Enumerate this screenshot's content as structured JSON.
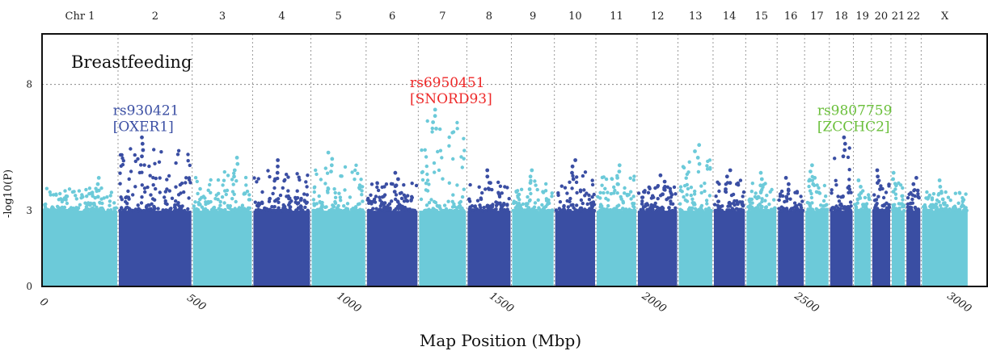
{
  "chart_data": {
    "type": "scatter",
    "title": "Breastfeeding",
    "xlabel": "Map Position (Mbp)",
    "ylabel": "-log10(P)",
    "xlim": [
      0,
      3100
    ],
    "ylim": [
      0,
      10
    ],
    "xticks": [
      "0",
      "500",
      "1000",
      "1500",
      "2000",
      "2500",
      "3000"
    ],
    "yticks": [
      "0",
      "3",
      "8"
    ],
    "grid": "vertical dotted chromosome boundaries; horizontal dotted line at 8",
    "colors": {
      "light": "#6ccad9",
      "dark": "#3a4ea3",
      "red": "#ee2a2a",
      "green": "#6abf3a",
      "blue_text": "#3a4ea3"
    },
    "chromosomes": [
      {
        "label": "Chr 1",
        "start": 0,
        "end": 249,
        "color": "light",
        "peak": 4.3
      },
      {
        "label": "2",
        "start": 249,
        "end": 492,
        "color": "dark",
        "peak": 5.9
      },
      {
        "label": "3",
        "start": 492,
        "end": 690,
        "color": "light",
        "peak": 5.1
      },
      {
        "label": "4",
        "start": 690,
        "end": 881,
        "color": "dark",
        "peak": 5.0
      },
      {
        "label": "5",
        "start": 881,
        "end": 1062,
        "color": "light",
        "peak": 5.3
      },
      {
        "label": "6",
        "start": 1062,
        "end": 1233,
        "color": "dark",
        "peak": 4.5
      },
      {
        "label": "7",
        "start": 1233,
        "end": 1392,
        "color": "light",
        "peak": 7.0
      },
      {
        "label": "8",
        "start": 1392,
        "end": 1538,
        "color": "dark",
        "peak": 4.6
      },
      {
        "label": "9",
        "start": 1538,
        "end": 1679,
        "color": "light",
        "peak": 4.6
      },
      {
        "label": "10",
        "start": 1679,
        "end": 1815,
        "color": "dark",
        "peak": 5.0
      },
      {
        "label": "11",
        "start": 1815,
        "end": 1950,
        "color": "light",
        "peak": 4.8
      },
      {
        "label": "12",
        "start": 1950,
        "end": 2084,
        "color": "dark",
        "peak": 4.4
      },
      {
        "label": "13",
        "start": 2084,
        "end": 2199,
        "color": "light",
        "peak": 5.6
      },
      {
        "label": "14",
        "start": 2199,
        "end": 2306,
        "color": "dark",
        "peak": 4.6
      },
      {
        "label": "15",
        "start": 2306,
        "end": 2409,
        "color": "light",
        "peak": 4.5
      },
      {
        "label": "16",
        "start": 2409,
        "end": 2499,
        "color": "dark",
        "peak": 4.3
      },
      {
        "label": "17",
        "start": 2499,
        "end": 2580,
        "color": "light",
        "peak": 4.8
      },
      {
        "label": "18",
        "start": 2580,
        "end": 2659,
        "color": "dark",
        "peak": 5.9
      },
      {
        "label": "19",
        "start": 2659,
        "end": 2718,
        "color": "light",
        "peak": 4.2
      },
      {
        "label": "20",
        "start": 2718,
        "end": 2782,
        "color": "dark",
        "peak": 4.6
      },
      {
        "label": "21",
        "start": 2782,
        "end": 2830,
        "color": "light",
        "peak": 4.5
      },
      {
        "label": "22",
        "start": 2830,
        "end": 2881,
        "color": "dark",
        "peak": 4.3
      },
      {
        "label": "X",
        "start": 2881,
        "end": 3036,
        "color": "light",
        "peak": 4.2
      }
    ],
    "annotations": [
      {
        "snp": "rs930421",
        "gene": "[OXER1]",
        "x": 312,
        "y": 5.9,
        "color": "blue_text"
      },
      {
        "snp": "rs6950451",
        "gene": "[SNORD93]",
        "x": 1285,
        "y": 7.0,
        "color": "red"
      },
      {
        "snp": "rs9807759",
        "gene": "[ZCCHC2]",
        "x": 2620,
        "y": 5.9,
        "color": "green"
      }
    ]
  }
}
